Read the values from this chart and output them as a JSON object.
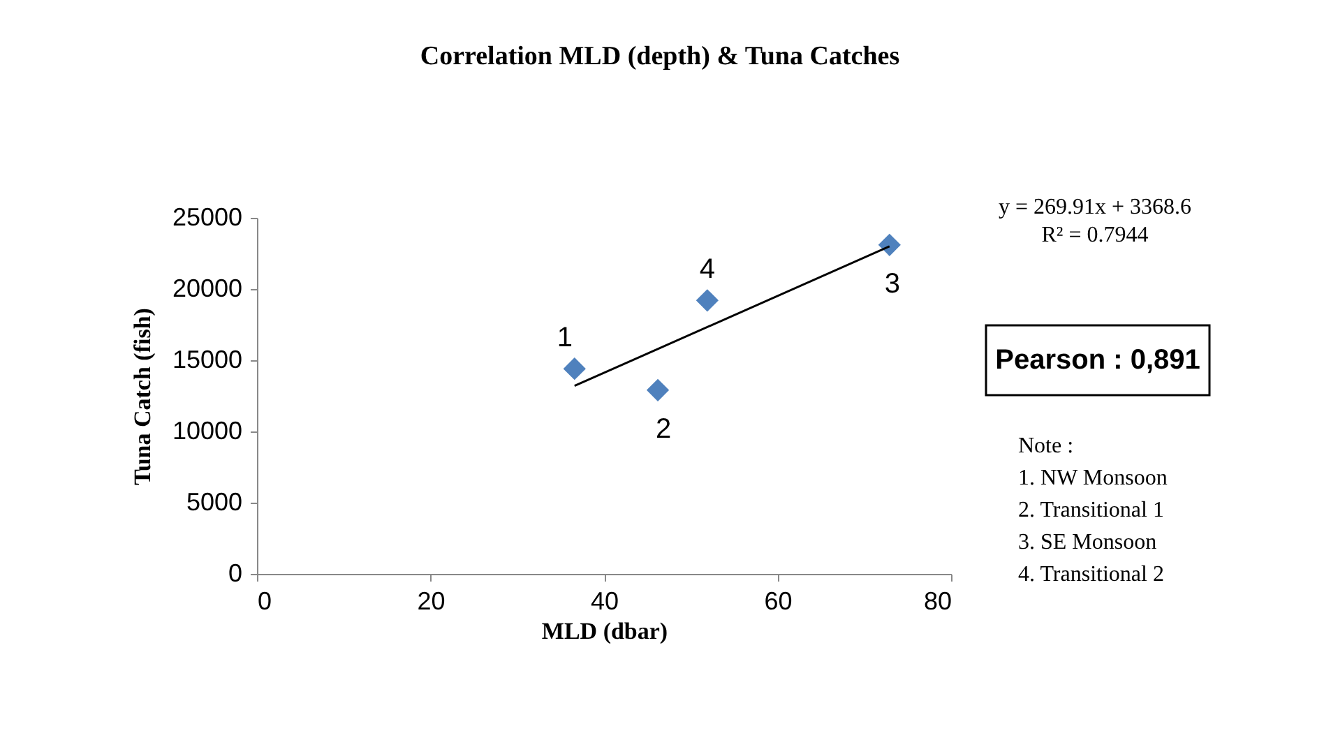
{
  "chart_data": {
    "type": "scatter",
    "title": "Correlation MLD (depth) & Tuna Catches",
    "xlabel": "MLD (dbar)",
    "ylabel": "Tuna Catch (fish)",
    "series": [
      {
        "color": "#4f81bd",
        "marker": "diamond",
        "x": [
          36.6,
          46.2,
          72.9,
          51.9
        ],
        "values": [
          14400,
          12900,
          23100,
          19200
        ]
      },
      {
        "type": "line",
        "color": "#000000",
        "line_style": "solid",
        "marker": "none",
        "x": [
          36.6,
          72.9
        ],
        "values": [
          13200,
          23000
        ]
      }
    ],
    "xlim": [
      0,
      80
    ],
    "xticks": [
      0,
      20,
      40,
      60,
      80
    ],
    "ylim": [
      0,
      25000
    ],
    "yticks": [
      0,
      5000,
      10000,
      15000,
      20000,
      25000
    ],
    "grid": false,
    "annotations": [
      {
        "text": "1",
        "x": 36.6,
        "y": 14400
      },
      {
        "text": "2",
        "x": 46.2,
        "y": 12900
      },
      {
        "text": "3",
        "x": 72.9,
        "y": 23100
      },
      {
        "text": "4",
        "x": 51.9,
        "y": 19200
      },
      "y = 269.91x + 3368.6",
      "R² = 0.7944",
      "Pearson : 0,891",
      "Note :",
      "1. NW Monsoon",
      "2. Transitional 1",
      "3. SE Monsoon",
      "4. Transitional 2"
    ]
  }
}
